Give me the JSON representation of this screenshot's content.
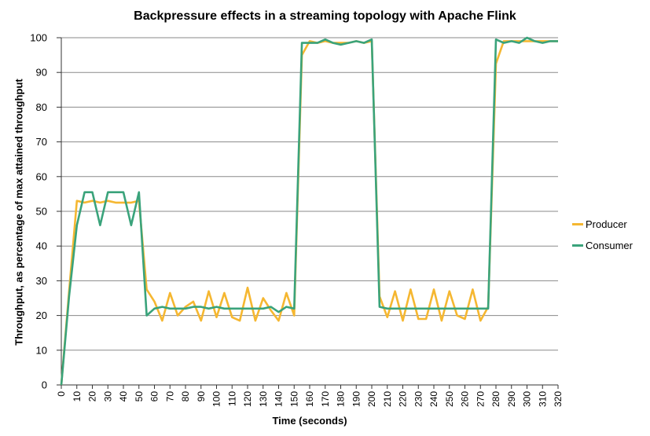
{
  "chart_data": {
    "type": "line",
    "title": "Backpressure effects in a streaming topology with Apache Flink",
    "xlabel": "Time (seconds)",
    "ylabel": "Throughput, as percentage of max attained throughput",
    "xlim": [
      0,
      320
    ],
    "ylim": [
      0,
      100
    ],
    "xticks": [
      "0",
      "10",
      "20",
      "30",
      "40",
      "50",
      "60",
      "70",
      "80",
      "90",
      "100",
      "110",
      "120",
      "130",
      "140",
      "150",
      "160",
      "170",
      "180",
      "190",
      "200",
      "210",
      "220",
      "230",
      "240",
      "250",
      "260",
      "270",
      "280",
      "290",
      "300",
      "310",
      "320"
    ],
    "yticks": [
      "0",
      "10",
      "20",
      "30",
      "40",
      "50",
      "60",
      "70",
      "80",
      "90",
      "100"
    ],
    "grid": "horizontal",
    "legend": "right",
    "series": [
      {
        "name": "Producer",
        "color": "#F5B731",
        "x": [
          0,
          5,
          10,
          15,
          20,
          25,
          30,
          35,
          40,
          45,
          50,
          55,
          60,
          65,
          70,
          75,
          80,
          85,
          90,
          95,
          100,
          105,
          110,
          115,
          120,
          125,
          130,
          135,
          140,
          145,
          150,
          155,
          160,
          165,
          170,
          175,
          180,
          185,
          190,
          195,
          200,
          205,
          210,
          215,
          220,
          225,
          230,
          235,
          240,
          245,
          250,
          255,
          260,
          265,
          270,
          275,
          280,
          285,
          290,
          295,
          300,
          305,
          310,
          315,
          320
        ],
        "values": [
          0,
          27,
          53,
          52.5,
          53,
          52.5,
          53,
          52.5,
          52.5,
          52.5,
          53,
          27.5,
          24,
          18.5,
          26.5,
          20,
          22.5,
          24,
          18.5,
          27,
          19.5,
          26.5,
          19.5,
          18.5,
          28,
          18.5,
          25,
          21.5,
          18.5,
          26.5,
          20,
          95,
          99,
          98.5,
          99,
          98.5,
          98.5,
          98.5,
          99,
          98.5,
          99,
          25.5,
          19.5,
          27,
          18.5,
          27.5,
          19,
          19,
          27.5,
          18.5,
          27,
          20,
          19,
          27.5,
          18.5,
          22.5,
          92.5,
          99,
          99,
          99,
          99,
          99,
          99,
          99,
          99
        ]
      },
      {
        "name": "Consumer",
        "color": "#3AA37B",
        "x": [
          0,
          5,
          10,
          15,
          20,
          25,
          30,
          35,
          40,
          45,
          50,
          55,
          60,
          65,
          70,
          75,
          80,
          85,
          90,
          95,
          100,
          105,
          110,
          115,
          120,
          125,
          130,
          135,
          140,
          145,
          150,
          155,
          160,
          165,
          170,
          175,
          180,
          185,
          190,
          195,
          200,
          205,
          210,
          215,
          220,
          225,
          230,
          235,
          240,
          245,
          250,
          255,
          260,
          265,
          270,
          275,
          280,
          285,
          290,
          295,
          300,
          305,
          310,
          315,
          320
        ],
        "values": [
          0,
          25.5,
          46,
          55.5,
          55.5,
          46,
          55.5,
          55.5,
          55.5,
          46,
          55.5,
          20,
          22,
          22.5,
          22,
          22,
          22,
          22.5,
          22.5,
          22,
          22.5,
          22,
          22,
          22,
          22,
          22,
          22,
          22.5,
          21,
          22.5,
          22,
          98.5,
          98.5,
          98.5,
          99.5,
          98.5,
          98,
          98.5,
          99,
          98.5,
          99.5,
          22.5,
          22,
          22,
          22,
          22,
          22,
          22,
          22,
          22,
          22,
          22,
          22,
          22,
          22,
          22,
          99.5,
          98.5,
          99,
          98.5,
          100,
          99,
          98.5,
          99,
          99
        ]
      }
    ]
  }
}
